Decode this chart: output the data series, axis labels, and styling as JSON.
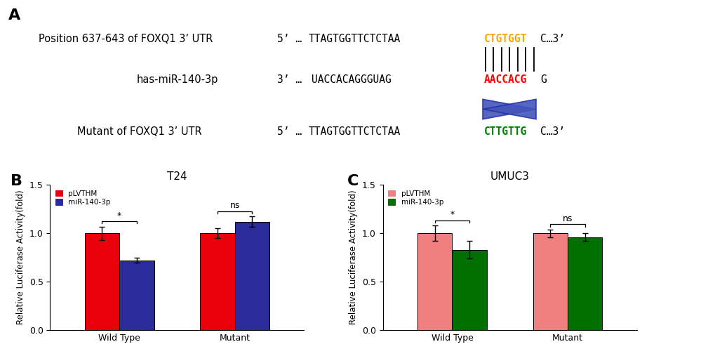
{
  "panel_A": {
    "row1_label": "Position 637-643 of FOXQ1 3’ UTR",
    "row1_prefix": "5’ …",
    "row1_seq1": "TTAGTGGTTCTCTAA",
    "row1_seq2_colored": "CTGTGGT",
    "row1_seq2_color": "#FFA500",
    "row1_suffix": "C…3’",
    "row2_label": "has-miR-140-3p",
    "row2_prefix": "3’ …",
    "row2_seq1": "UACCACAGGGUAG",
    "row2_seq2_colored": "AACCACG",
    "row2_seq2_color": "#FF0000",
    "row2_suffix": "G",
    "row3_label": "Mutant of FOXQ1 3’ UTR",
    "row3_prefix": "5’ …",
    "row3_seq1": "TTAGTGGTTCTCTAA",
    "row3_seq2_colored": "CTTGTTG",
    "row3_seq2_color": "#008000",
    "row3_suffix": "C…3’"
  },
  "panel_B": {
    "title": "T24",
    "ylabel": "Relative Luciferase Activity(fold)",
    "categories": [
      "Wild Type",
      "Mutant"
    ],
    "pLVTHM_values": [
      1.0,
      1.0
    ],
    "miR_values": [
      0.72,
      1.12
    ],
    "pLVTHM_errors": [
      0.07,
      0.05
    ],
    "miR_errors": [
      0.025,
      0.055
    ],
    "pLVTHM_color": "#E8000A",
    "miR_color": "#2B2B9B",
    "ylim": [
      0,
      1.5
    ],
    "yticks": [
      0.0,
      0.5,
      1.0,
      1.5
    ],
    "sig_labels": [
      "*",
      "ns"
    ],
    "legend_labels": [
      "pLVTHM",
      "miR-140-3p"
    ]
  },
  "panel_C": {
    "title": "UMUC3",
    "ylabel": "Relative Luciferase Activity(fold)",
    "categories": [
      "Wild Type",
      "Mutant"
    ],
    "pLVTHM_values": [
      1.0,
      1.0
    ],
    "miR_values": [
      0.83,
      0.96
    ],
    "pLVTHM_errors": [
      0.08,
      0.04
    ],
    "miR_errors": [
      0.09,
      0.04
    ],
    "pLVTHM_color": "#F08080",
    "miR_color": "#007000",
    "ylim": [
      0,
      1.5
    ],
    "yticks": [
      0.0,
      0.5,
      1.0,
      1.5
    ],
    "sig_labels": [
      "*",
      "ns"
    ],
    "legend_labels": [
      "pLVTHM",
      "miR-140-3p"
    ]
  },
  "bg_color": "#FFFFFF"
}
